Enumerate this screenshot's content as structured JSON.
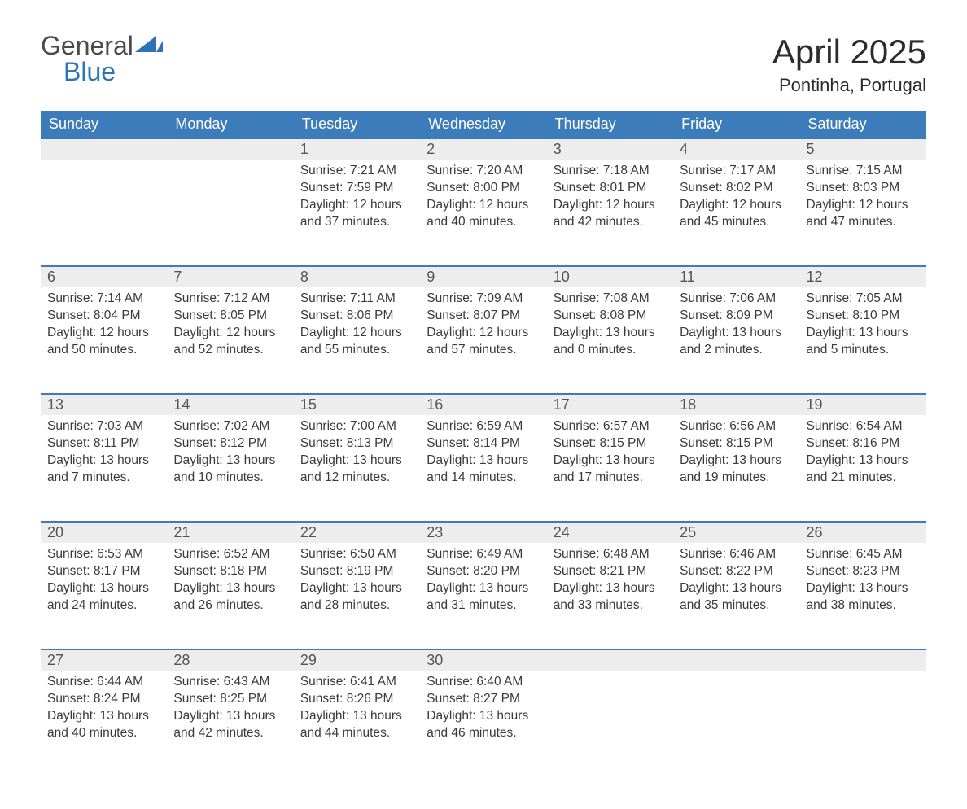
{
  "logo": {
    "word1": "General",
    "word2": "Blue",
    "accent_color": "#2d73b8",
    "text_color": "#4a4a4a"
  },
  "header": {
    "title": "April 2025",
    "location": "Pontinha, Portugal"
  },
  "colors": {
    "th_bg": "#3d7cba",
    "th_text": "#ffffff",
    "row_top_border": "#3d7cba",
    "daynum_bg": "#ededed",
    "body_text": "#3a3a3a",
    "page_bg": "#ffffff"
  },
  "weekdays": [
    "Sunday",
    "Monday",
    "Tuesday",
    "Wednesday",
    "Thursday",
    "Friday",
    "Saturday"
  ],
  "labels": {
    "sunrise": "Sunrise:",
    "sunset": "Sunset:",
    "daylight": "Daylight:"
  },
  "weeks": [
    [
      null,
      null,
      {
        "n": 1,
        "sunrise": "7:21 AM",
        "sunset": "7:59 PM",
        "day_h": 12,
        "day_m": 37
      },
      {
        "n": 2,
        "sunrise": "7:20 AM",
        "sunset": "8:00 PM",
        "day_h": 12,
        "day_m": 40
      },
      {
        "n": 3,
        "sunrise": "7:18 AM",
        "sunset": "8:01 PM",
        "day_h": 12,
        "day_m": 42
      },
      {
        "n": 4,
        "sunrise": "7:17 AM",
        "sunset": "8:02 PM",
        "day_h": 12,
        "day_m": 45
      },
      {
        "n": 5,
        "sunrise": "7:15 AM",
        "sunset": "8:03 PM",
        "day_h": 12,
        "day_m": 47
      }
    ],
    [
      {
        "n": 6,
        "sunrise": "7:14 AM",
        "sunset": "8:04 PM",
        "day_h": 12,
        "day_m": 50
      },
      {
        "n": 7,
        "sunrise": "7:12 AM",
        "sunset": "8:05 PM",
        "day_h": 12,
        "day_m": 52
      },
      {
        "n": 8,
        "sunrise": "7:11 AM",
        "sunset": "8:06 PM",
        "day_h": 12,
        "day_m": 55
      },
      {
        "n": 9,
        "sunrise": "7:09 AM",
        "sunset": "8:07 PM",
        "day_h": 12,
        "day_m": 57
      },
      {
        "n": 10,
        "sunrise": "7:08 AM",
        "sunset": "8:08 PM",
        "day_h": 13,
        "day_m": 0
      },
      {
        "n": 11,
        "sunrise": "7:06 AM",
        "sunset": "8:09 PM",
        "day_h": 13,
        "day_m": 2
      },
      {
        "n": 12,
        "sunrise": "7:05 AM",
        "sunset": "8:10 PM",
        "day_h": 13,
        "day_m": 5
      }
    ],
    [
      {
        "n": 13,
        "sunrise": "7:03 AM",
        "sunset": "8:11 PM",
        "day_h": 13,
        "day_m": 7
      },
      {
        "n": 14,
        "sunrise": "7:02 AM",
        "sunset": "8:12 PM",
        "day_h": 13,
        "day_m": 10
      },
      {
        "n": 15,
        "sunrise": "7:00 AM",
        "sunset": "8:13 PM",
        "day_h": 13,
        "day_m": 12
      },
      {
        "n": 16,
        "sunrise": "6:59 AM",
        "sunset": "8:14 PM",
        "day_h": 13,
        "day_m": 14
      },
      {
        "n": 17,
        "sunrise": "6:57 AM",
        "sunset": "8:15 PM",
        "day_h": 13,
        "day_m": 17
      },
      {
        "n": 18,
        "sunrise": "6:56 AM",
        "sunset": "8:15 PM",
        "day_h": 13,
        "day_m": 19
      },
      {
        "n": 19,
        "sunrise": "6:54 AM",
        "sunset": "8:16 PM",
        "day_h": 13,
        "day_m": 21
      }
    ],
    [
      {
        "n": 20,
        "sunrise": "6:53 AM",
        "sunset": "8:17 PM",
        "day_h": 13,
        "day_m": 24
      },
      {
        "n": 21,
        "sunrise": "6:52 AM",
        "sunset": "8:18 PM",
        "day_h": 13,
        "day_m": 26
      },
      {
        "n": 22,
        "sunrise": "6:50 AM",
        "sunset": "8:19 PM",
        "day_h": 13,
        "day_m": 28
      },
      {
        "n": 23,
        "sunrise": "6:49 AM",
        "sunset": "8:20 PM",
        "day_h": 13,
        "day_m": 31
      },
      {
        "n": 24,
        "sunrise": "6:48 AM",
        "sunset": "8:21 PM",
        "day_h": 13,
        "day_m": 33
      },
      {
        "n": 25,
        "sunrise": "6:46 AM",
        "sunset": "8:22 PM",
        "day_h": 13,
        "day_m": 35
      },
      {
        "n": 26,
        "sunrise": "6:45 AM",
        "sunset": "8:23 PM",
        "day_h": 13,
        "day_m": 38
      }
    ],
    [
      {
        "n": 27,
        "sunrise": "6:44 AM",
        "sunset": "8:24 PM",
        "day_h": 13,
        "day_m": 40
      },
      {
        "n": 28,
        "sunrise": "6:43 AM",
        "sunset": "8:25 PM",
        "day_h": 13,
        "day_m": 42
      },
      {
        "n": 29,
        "sunrise": "6:41 AM",
        "sunset": "8:26 PM",
        "day_h": 13,
        "day_m": 44
      },
      {
        "n": 30,
        "sunrise": "6:40 AM",
        "sunset": "8:27 PM",
        "day_h": 13,
        "day_m": 46
      },
      null,
      null,
      null
    ]
  ]
}
